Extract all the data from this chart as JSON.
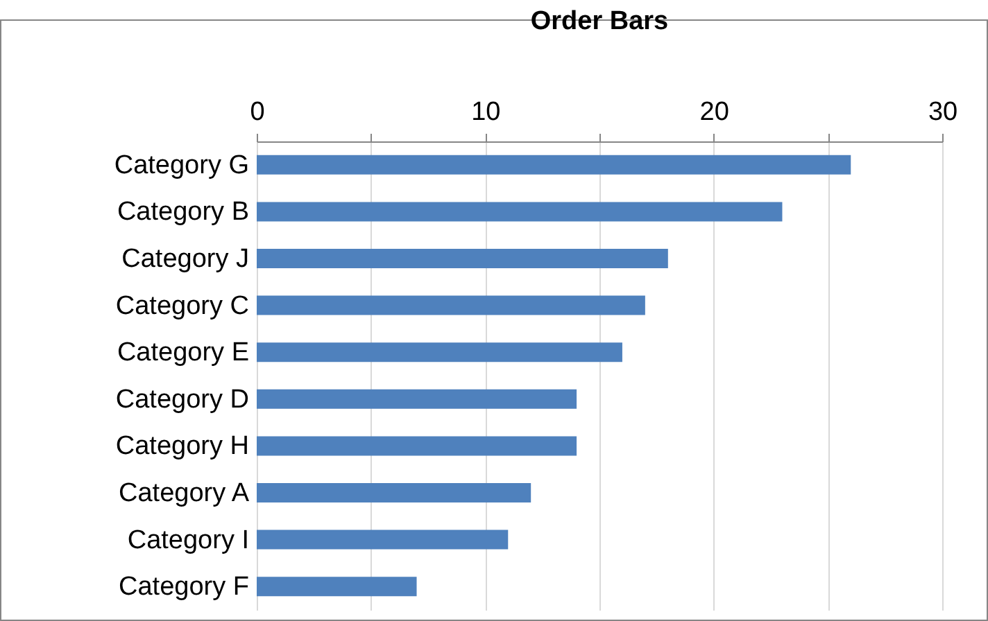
{
  "chart_data": {
    "type": "bar",
    "title": "Order Bars",
    "orientation": "horizontal",
    "categories": [
      "Category G",
      "Category B",
      "Category J",
      "Category C",
      "Category E",
      "Category D",
      "Category H",
      "Category A",
      "Category I",
      "Category F"
    ],
    "values": [
      26,
      23,
      18,
      17,
      16,
      14,
      14,
      12,
      11,
      7
    ],
    "color": "#4f81bd",
    "xlim": [
      0,
      30
    ],
    "xticks": [
      0,
      {
        "value": 5,
        "label": null
      },
      10,
      {
        "value": 15,
        "label": null
      },
      20,
      {
        "value": 25,
        "label": null
      },
      30
    ],
    "grid": "x"
  }
}
